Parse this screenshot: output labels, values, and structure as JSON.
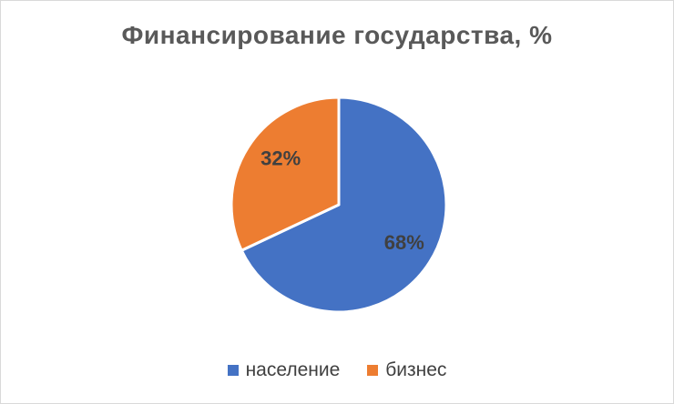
{
  "chart_data": {
    "type": "pie",
    "title": "Финансирование государства, %",
    "categories": [
      "население",
      "бизнес"
    ],
    "values": [
      68,
      32
    ],
    "data_labels": [
      "68%",
      "32%"
    ],
    "colors": [
      "#4472c4",
      "#ed7d31"
    ],
    "legend_position": "bottom"
  }
}
